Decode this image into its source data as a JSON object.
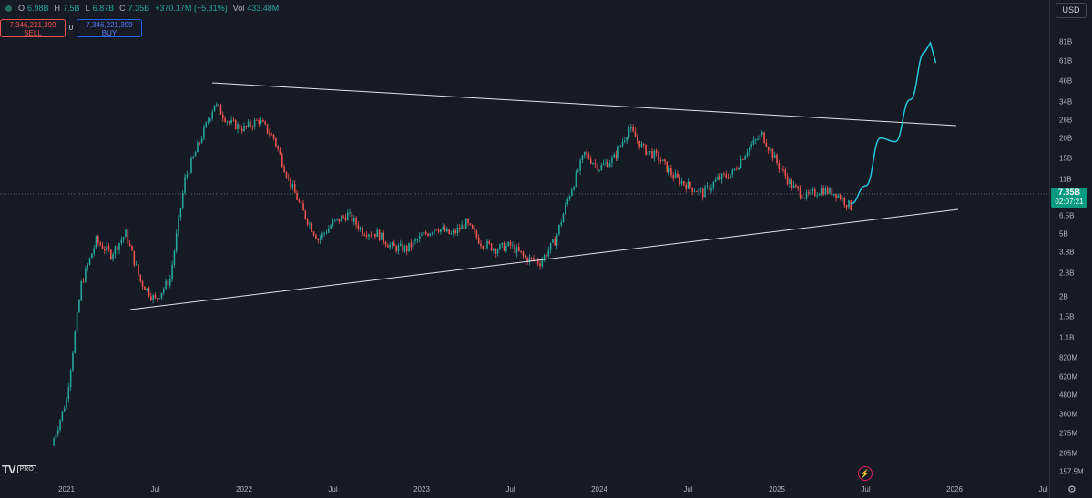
{
  "legend": {
    "o_label": "O",
    "o_value": "6.98B",
    "h_label": "H",
    "h_value": "7.5B",
    "l_label": "L",
    "l_value": "6.87B",
    "c_label": "C",
    "c_value": "7.35B",
    "change": "+370.17M (+5.31%)",
    "vol_label": "Vol",
    "vol_value": "433.48M"
  },
  "trade": {
    "sell_price": "7,346,221,399",
    "sell_label": "SELL",
    "spread": "0",
    "buy_price": "7,346,221,399",
    "buy_label": "BUY"
  },
  "currency": "USD",
  "price_tag": {
    "price": "7.35B",
    "countdown": "02:07:21"
  },
  "logo": {
    "mark": "TV",
    "badge": "PRO"
  },
  "icons": {
    "alert": "bolt-icon",
    "settings": "gear-icon"
  },
  "colors": {
    "background": "#161a25",
    "up": "#26a69a",
    "down": "#ef5350",
    "projection": "#26c6da",
    "trendline": "#e0e3eb"
  },
  "chart_data": {
    "type": "candlestick",
    "y_scale": "log",
    "y_tick_labels": [
      "81B",
      "61B",
      "46B",
      "34B",
      "26B",
      "20B",
      "15B",
      "11B",
      "8.5B",
      "6.5B",
      "5B",
      "3.8B",
      "2.8B",
      "2B",
      "1.5B",
      "1.1B",
      "820M",
      "620M",
      "480M",
      "360M",
      "275M",
      "205M",
      "157.5M"
    ],
    "x_tick_labels": [
      "2021",
      "Jul",
      "2022",
      "Jul",
      "2023",
      "Jul",
      "2024",
      "Jul",
      "2025",
      "Jul",
      "2026",
      "Jul"
    ],
    "close_series": [
      {
        "date": "2020-12",
        "close": 0.23
      },
      {
        "date": "2021-01",
        "close": 0.45
      },
      {
        "date": "2021-02",
        "close": 2.4
      },
      {
        "date": "2021-03",
        "close": 4.5
      },
      {
        "date": "2021-04",
        "close": 3.7
      },
      {
        "date": "2021-05",
        "close": 5.0
      },
      {
        "date": "2021-06",
        "close": 2.5
      },
      {
        "date": "2021-07",
        "close": 1.9
      },
      {
        "date": "2021-08",
        "close": 2.6
      },
      {
        "date": "2021-09",
        "close": 11
      },
      {
        "date": "2021-10",
        "close": 19
      },
      {
        "date": "2021-11",
        "close": 33
      },
      {
        "date": "2021-12",
        "close": 25
      },
      {
        "date": "2022-01",
        "close": 23
      },
      {
        "date": "2022-02",
        "close": 26
      },
      {
        "date": "2022-03",
        "close": 20
      },
      {
        "date": "2022-04",
        "close": 11
      },
      {
        "date": "2022-05",
        "close": 6.8
      },
      {
        "date": "2022-06",
        "close": 4.6
      },
      {
        "date": "2022-07",
        "close": 5.8
      },
      {
        "date": "2022-08",
        "close": 6.6
      },
      {
        "date": "2022-09",
        "close": 5.2
      },
      {
        "date": "2022-10",
        "close": 5.0
      },
      {
        "date": "2022-11",
        "close": 4.1
      },
      {
        "date": "2022-12",
        "close": 4.0
      },
      {
        "date": "2023-01",
        "close": 4.8
      },
      {
        "date": "2023-02",
        "close": 5.5
      },
      {
        "date": "2023-03",
        "close": 4.9
      },
      {
        "date": "2023-04",
        "close": 5.8
      },
      {
        "date": "2023-05",
        "close": 4.4
      },
      {
        "date": "2023-06",
        "close": 4.0
      },
      {
        "date": "2023-07",
        "close": 4.2
      },
      {
        "date": "2023-08",
        "close": 3.5
      },
      {
        "date": "2023-09",
        "close": 3.3
      },
      {
        "date": "2023-10",
        "close": 4.5
      },
      {
        "date": "2023-11",
        "close": 9
      },
      {
        "date": "2023-12",
        "close": 16
      },
      {
        "date": "2024-01",
        "close": 13
      },
      {
        "date": "2024-02",
        "close": 15
      },
      {
        "date": "2024-03",
        "close": 23
      },
      {
        "date": "2024-04",
        "close": 17
      },
      {
        "date": "2024-05",
        "close": 15
      },
      {
        "date": "2024-06",
        "close": 11.5
      },
      {
        "date": "2024-07",
        "close": 10
      },
      {
        "date": "2024-08",
        "close": 9
      },
      {
        "date": "2024-09",
        "close": 11
      },
      {
        "date": "2024-10",
        "close": 12
      },
      {
        "date": "2024-11",
        "close": 17
      },
      {
        "date": "2024-12",
        "close": 21
      },
      {
        "date": "2025-01",
        "close": 14
      },
      {
        "date": "2025-02",
        "close": 10
      },
      {
        "date": "2025-03",
        "close": 8.5
      },
      {
        "date": "2025-04",
        "close": 9.5
      },
      {
        "date": "2025-05",
        "close": 9.0
      },
      {
        "date": "2025-06",
        "close": 7.35
      }
    ],
    "trendlines": [
      {
        "name": "upper",
        "from": {
          "date": "2021-11",
          "value": 37
        },
        "to": {
          "date": "2026-01",
          "value": 19
        }
      },
      {
        "name": "lower",
        "from": {
          "date": "2021-06",
          "value": 1.55
        },
        "to": {
          "date": "2026-01",
          "value": 6.6
        }
      }
    ],
    "projection": [
      {
        "date": "2025-06",
        "value": 7.7
      },
      {
        "date": "2025-07",
        "value": 10
      },
      {
        "date": "2025-08",
        "value": 20
      },
      {
        "date": "2025-09",
        "value": 19
      },
      {
        "date": "2025-10",
        "value": 35
      },
      {
        "date": "2025-11",
        "value": 70
      }
    ],
    "current_price_line": 7.35,
    "grid": false,
    "legend_position": "top-left"
  }
}
